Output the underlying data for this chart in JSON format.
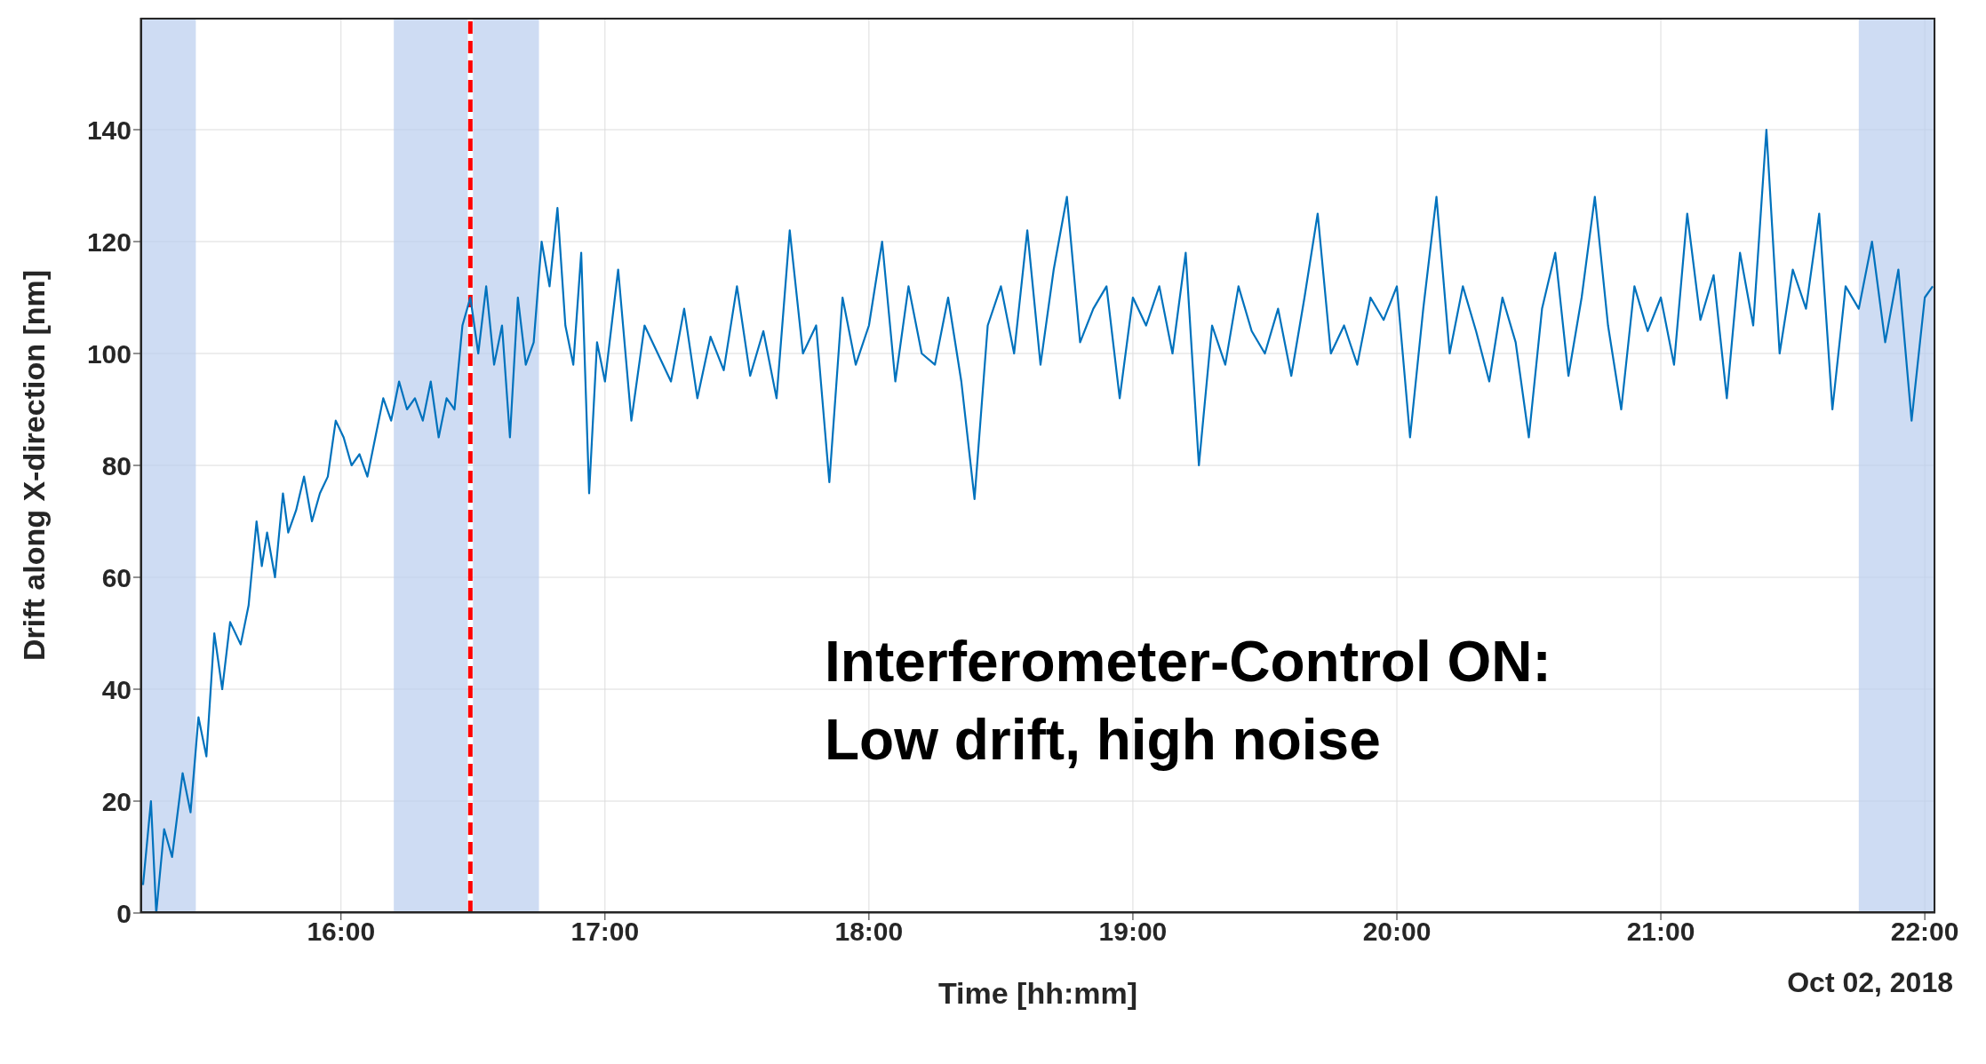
{
  "chart_data": {
    "type": "line",
    "xlabel": "Time [hh:mm]",
    "ylabel": "Drift along X-direction [nm]",
    "xlim": [
      15.24,
      22.04
    ],
    "xticks": [
      {
        "value": 16,
        "label": "16:00"
      },
      {
        "value": 17,
        "label": "17:00"
      },
      {
        "value": 18,
        "label": "18:00"
      },
      {
        "value": 19,
        "label": "19:00"
      },
      {
        "value": 20,
        "label": "20:00"
      },
      {
        "value": 21,
        "label": "21:00"
      },
      {
        "value": 22,
        "label": "22:00"
      }
    ],
    "ylim": [
      0,
      160
    ],
    "yticks": [
      0,
      20,
      40,
      60,
      80,
      100,
      120,
      140
    ],
    "grid": true,
    "marker": "none",
    "line_style": "solid",
    "x": [
      15.25,
      15.28,
      15.3,
      15.33,
      15.36,
      15.4,
      15.43,
      15.46,
      15.49,
      15.52,
      15.55,
      15.58,
      15.62,
      15.65,
      15.68,
      15.7,
      15.72,
      15.75,
      15.78,
      15.8,
      15.83,
      15.86,
      15.89,
      15.92,
      15.95,
      15.98,
      16.01,
      16.04,
      16.07,
      16.1,
      16.13,
      16.16,
      16.19,
      16.22,
      16.25,
      16.28,
      16.31,
      16.34,
      16.37,
      16.4,
      16.43,
      16.46,
      16.49,
      16.52,
      16.55,
      16.58,
      16.61,
      16.64,
      16.67,
      16.7,
      16.73,
      16.76,
      16.79,
      16.82,
      16.85,
      16.88,
      16.91,
      16.94,
      16.97,
      17.0,
      17.05,
      17.1,
      17.15,
      17.2,
      17.25,
      17.3,
      17.35,
      17.4,
      17.45,
      17.5,
      17.55,
      17.6,
      17.65,
      17.7,
      17.75,
      17.8,
      17.85,
      17.9,
      17.95,
      18.0,
      18.05,
      18.1,
      18.15,
      18.2,
      18.25,
      18.3,
      18.35,
      18.4,
      18.45,
      18.5,
      18.55,
      18.6,
      18.65,
      18.7,
      18.75,
      18.8,
      18.85,
      18.9,
      18.95,
      19.0,
      19.05,
      19.1,
      19.15,
      19.2,
      19.25,
      19.3,
      19.35,
      19.4,
      19.45,
      19.5,
      19.55,
      19.6,
      19.65,
      19.7,
      19.75,
      19.8,
      19.85,
      19.9,
      19.95,
      20.0,
      20.05,
      20.1,
      20.15,
      20.2,
      20.25,
      20.3,
      20.35,
      20.4,
      20.45,
      20.5,
      20.55,
      20.6,
      20.65,
      20.7,
      20.75,
      20.8,
      20.85,
      20.9,
      20.95,
      21.0,
      21.05,
      21.1,
      21.15,
      21.2,
      21.25,
      21.3,
      21.35,
      21.4,
      21.45,
      21.5,
      21.55,
      21.6,
      21.65,
      21.7,
      21.75,
      21.8,
      21.85,
      21.9,
      21.95,
      22.0,
      22.03
    ],
    "series": [
      {
        "color": "#0072bd",
        "values": [
          5,
          20,
          0,
          15,
          10,
          25,
          18,
          35,
          28,
          50,
          40,
          52,
          48,
          55,
          70,
          62,
          68,
          60,
          75,
          68,
          72,
          78,
          70,
          75,
          78,
          88,
          85,
          80,
          82,
          78,
          85,
          92,
          88,
          95,
          90,
          92,
          88,
          95,
          85,
          92,
          90,
          105,
          110,
          100,
          112,
          98,
          105,
          85,
          110,
          98,
          102,
          120,
          112,
          126,
          105,
          98,
          118,
          75,
          102,
          95,
          115,
          88,
          105,
          100,
          95,
          108,
          92,
          103,
          97,
          112,
          96,
          104,
          92,
          122,
          100,
          105,
          77,
          110,
          98,
          105,
          120,
          95,
          112,
          100,
          98,
          110,
          95,
          74,
          105,
          112,
          100,
          122,
          98,
          115,
          128,
          102,
          108,
          112,
          92,
          110,
          105,
          112,
          100,
          118,
          80,
          105,
          98,
          112,
          104,
          100,
          108,
          96,
          110,
          125,
          100,
          105,
          98,
          110,
          106,
          112,
          85,
          108,
          128,
          100,
          112,
          104,
          95,
          110,
          102,
          85,
          108,
          118,
          96,
          110,
          128,
          105,
          90,
          112,
          104,
          110,
          98,
          125,
          106,
          114,
          92,
          118,
          105,
          140,
          100,
          115,
          108,
          125,
          90,
          112,
          108,
          120,
          102,
          115,
          88,
          110,
          112
        ]
      }
    ],
    "ref_lines": [
      {
        "axis": "x",
        "value": 16.49,
        "color": "#ff0000",
        "line_style": "dashed"
      }
    ],
    "bands": [
      {
        "axis": "x",
        "from": 15.24,
        "to": 15.45,
        "color": "#b9cdee"
      },
      {
        "axis": "x",
        "from": 16.2,
        "to": 16.48,
        "color": "#b9cdee"
      },
      {
        "axis": "x",
        "from": 16.5,
        "to": 16.75,
        "color": "#b9cdee"
      },
      {
        "axis": "x",
        "from": 21.75,
        "to": 22.04,
        "color": "#b9cdee"
      }
    ],
    "annotations": [
      "Interferometer-Control ON:",
      "Low drift, high noise",
      "Oct 02, 2018"
    ]
  }
}
